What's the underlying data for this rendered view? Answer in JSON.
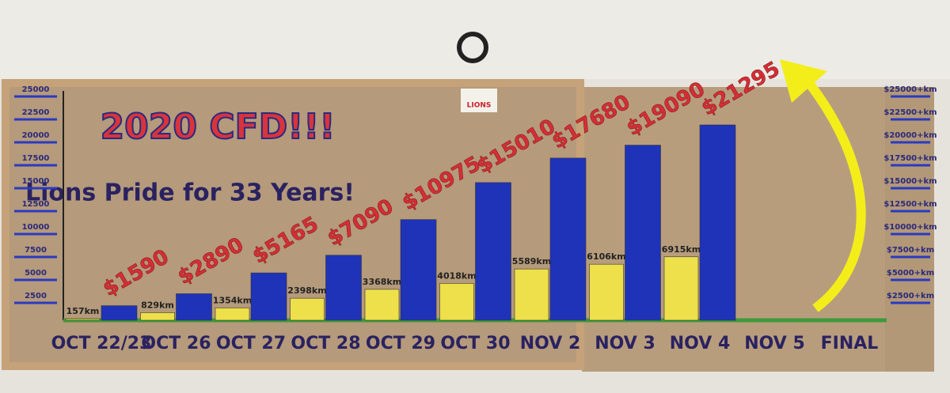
{
  "chart_data": {
    "type": "bar",
    "title": "2020 CFD!!!",
    "subtitle": "Lions Pride for 33 Years!",
    "logo_text": "LIONS",
    "categories": [
      "OCT 22/23",
      "OCT 26",
      "OCT 27",
      "OCT 28",
      "OCT 29",
      "OCT 30",
      "NOV 2",
      "NOV 3",
      "NOV 4",
      "NOV 5",
      "FINAL"
    ],
    "series": [
      {
        "color": "#ede04a",
        "values": [
          157,
          829,
          1354,
          2398,
          3368,
          4018,
          5589,
          6106,
          6915,
          null,
          null
        ],
        "value_labels": [
          "157km",
          "829km",
          "1354km",
          "2398km",
          "3368km",
          "4018km",
          "5589km",
          "6106km",
          "6915km",
          null,
          null
        ]
      },
      {
        "color": "#1f33b8",
        "values": [
          1590,
          2890,
          5165,
          7090,
          10975,
          15010,
          17680,
          19090,
          21295,
          null,
          null
        ],
        "value_labels": [
          "$1590",
          "$2890",
          "$5165",
          "$7090",
          "$10975",
          "$15010",
          "$17680",
          "$19090",
          "$21295",
          null,
          null
        ]
      }
    ],
    "ylim": [
      0,
      25000
    ],
    "yticks": [
      2500,
      5000,
      7500,
      10000,
      12500,
      15000,
      17500,
      20000,
      22500,
      25000
    ],
    "y2lim": [
      0,
      25000
    ],
    "y2ticks": [
      {
        "value": 2500,
        "label": "$2500+km"
      },
      {
        "value": 5000,
        "label": "$5000+km"
      },
      {
        "value": 7500,
        "label": "$7500+km"
      },
      {
        "value": 10000,
        "label": "$10000+km"
      },
      {
        "value": 12500,
        "label": "$12500+km"
      },
      {
        "value": 15000,
        "label": "$15000+km"
      },
      {
        "value": 17500,
        "label": "$17500+km"
      },
      {
        "value": 20000,
        "label": "$20000+km"
      },
      {
        "value": 22500,
        "label": "$22500+km"
      },
      {
        "value": 25000,
        "label": "$25000+km"
      }
    ]
  }
}
